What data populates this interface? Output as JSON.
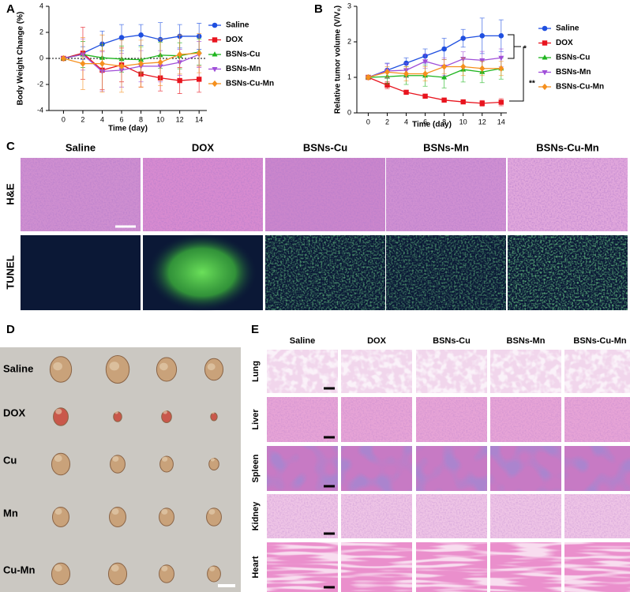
{
  "chart_data": [
    {
      "type": "line",
      "ylabel": "Body Weight Change (%)",
      "xlabel": "Time (day)",
      "x": [
        0,
        2,
        4,
        6,
        8,
        10,
        12,
        14
      ],
      "xlim": [
        -1.5,
        14.8
      ],
      "xticks": [
        0,
        2,
        4,
        6,
        8,
        10,
        12,
        14
      ],
      "ylim": [
        -4,
        4
      ],
      "yticks": [
        -4,
        -2,
        0,
        2,
        4
      ],
      "reference_line": 0,
      "series": [
        {
          "name": "Saline",
          "color": "#1f4fe0",
          "marker": "circle",
          "values": [
            0,
            0.4,
            1.1,
            1.6,
            1.8,
            1.45,
            1.7,
            1.7
          ],
          "errors": [
            0,
            0.5,
            1.0,
            1.0,
            0.8,
            1.3,
            0.9,
            1.0
          ]
        },
        {
          "name": "DOX",
          "color": "#e8141e",
          "marker": "square",
          "values": [
            0,
            0.4,
            -0.9,
            -0.5,
            -1.2,
            -1.5,
            -1.7,
            -1.6
          ],
          "errors": [
            0,
            2.0,
            1.5,
            1.3,
            1.0,
            1.0,
            1.0,
            1.0
          ]
        },
        {
          "name": "BSNs-Cu",
          "color": "#1fb51f",
          "marker": "triangle",
          "values": [
            0,
            0.3,
            0.05,
            -0.05,
            -0.1,
            0.25,
            0.2,
            0.5
          ],
          "errors": [
            0,
            1.0,
            1.0,
            1.0,
            1.0,
            1.0,
            1.0,
            1.0
          ]
        },
        {
          "name": "BSNs-Mn",
          "color": "#a04fd9",
          "marker": "triangle-down",
          "values": [
            0,
            0.3,
            -1.0,
            -0.9,
            -0.6,
            -0.6,
            -0.3,
            0.3
          ],
          "errors": [
            0,
            1.2,
            1.5,
            1.3,
            1.2,
            1.2,
            1.0,
            1.0
          ]
        },
        {
          "name": "BSNs-Cu-Mn",
          "color": "#f5901e",
          "marker": "diamond",
          "values": [
            0,
            -0.4,
            -0.4,
            -0.6,
            -0.4,
            -0.3,
            0.3,
            0.4
          ],
          "errors": [
            0,
            2.0,
            2.2,
            2.0,
            1.8,
            1.8,
            1.5,
            1.5
          ]
        }
      ]
    },
    {
      "type": "line",
      "ylabel": "Relative tumor volume (V/V₀)",
      "xlabel": "Time (day)",
      "x": [
        0,
        2,
        4,
        6,
        8,
        10,
        12,
        14
      ],
      "xlim": [
        -1.2,
        14.6
      ],
      "xticks": [
        0,
        2,
        4,
        6,
        8,
        10,
        12,
        14
      ],
      "ylim": [
        0,
        3
      ],
      "yticks": [
        0,
        1,
        2,
        3
      ],
      "annotations": [
        "*",
        "**"
      ],
      "series": [
        {
          "name": "Saline",
          "color": "#1f4fe0",
          "marker": "circle",
          "values": [
            1,
            1.2,
            1.4,
            1.6,
            1.8,
            2.1,
            2.17,
            2.17
          ],
          "errors": [
            0.05,
            0.2,
            0.15,
            0.2,
            0.3,
            0.25,
            0.5,
            0.45
          ]
        },
        {
          "name": "DOX",
          "color": "#e8141e",
          "marker": "square",
          "values": [
            1,
            0.78,
            0.58,
            0.47,
            0.36,
            0.31,
            0.27,
            0.3
          ],
          "errors": [
            0.05,
            0.1,
            0.05,
            0.05,
            0.05,
            0.05,
            0.08,
            0.1
          ]
        },
        {
          "name": "BSNs-Cu",
          "color": "#1fb51f",
          "marker": "triangle",
          "values": [
            1,
            1.02,
            1.05,
            1.05,
            1.0,
            1.22,
            1.15,
            1.25
          ],
          "errors": [
            0.05,
            0.2,
            0.25,
            0.3,
            0.3,
            0.35,
            0.3,
            0.3
          ]
        },
        {
          "name": "BSNs-Mn",
          "color": "#a04fd9",
          "marker": "triangle-down",
          "values": [
            1,
            1.18,
            1.2,
            1.45,
            1.3,
            1.52,
            1.48,
            1.55
          ],
          "errors": [
            0.05,
            0.2,
            0.2,
            0.2,
            0.25,
            0.2,
            0.25,
            0.25
          ]
        },
        {
          "name": "BSNs-Cu-Mn",
          "color": "#f5901e",
          "marker": "diamond",
          "values": [
            1,
            1.15,
            1.1,
            1.1,
            1.3,
            1.3,
            1.25,
            1.25
          ],
          "errors": [
            0.05,
            0.15,
            0.2,
            0.2,
            0.2,
            0.25,
            0.2,
            0.2
          ]
        }
      ]
    }
  ],
  "panel_labels": [
    "A",
    "B",
    "C",
    "D",
    "E"
  ],
  "tumor_histology": {
    "columns": [
      "Saline",
      "DOX",
      "BSNs-Cu",
      "BSNs-Mn",
      "BSNs-Cu-Mn"
    ],
    "rows": [
      "H&E",
      "TUNEL"
    ]
  },
  "tumor_photo": {
    "rows": [
      "Saline",
      "DOX",
      "Cu",
      "Mn",
      "Cu-Mn"
    ]
  },
  "organ_histology": {
    "columns": [
      "Saline",
      "DOX",
      "BSNs-Cu",
      "BSNs-Mn",
      "BSNs-Cu-Mn"
    ],
    "rows": [
      "Lung",
      "Liver",
      "Spleen",
      "Kidney",
      "Heart"
    ]
  }
}
